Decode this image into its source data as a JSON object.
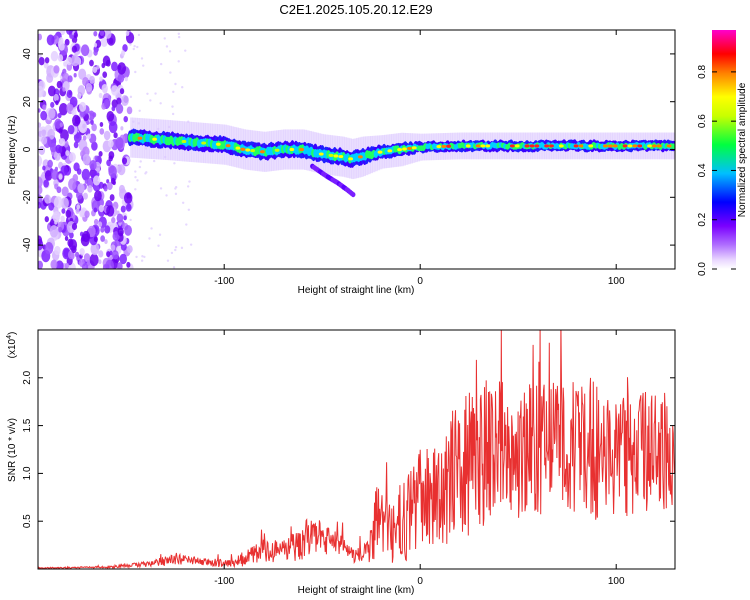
{
  "title": "C2E1.2025.105.20.12.E29",
  "chart_data": [
    {
      "type": "heatmap",
      "panel": "spectrogram",
      "xlabel": "Height of straight line (km)",
      "ylabel": "Frequency (Hz)",
      "xlim": [
        -195,
        130
      ],
      "ylim": [
        -50,
        50
      ],
      "xticks": [
        -100,
        0,
        100
      ],
      "xtick_labels": [
        "-100",
        "0",
        "100"
      ],
      "yticks": [
        -40,
        -20,
        0,
        20,
        40
      ],
      "ytick_labels": [
        "-40",
        "-20",
        "0",
        "20",
        "40"
      ],
      "colorbar": {
        "label": "Normalized spectral amplitude",
        "range": [
          0.0,
          0.97
        ],
        "ticks": [
          0.0,
          0.2,
          0.4,
          0.6,
          0.8
        ],
        "tick_labels": [
          "0.0",
          "0.2",
          "0.4",
          "0.6",
          "0.8"
        ],
        "colormap": [
          "#ffffff",
          "#c8a0ff",
          "#8800ff",
          "#0000ff",
          "#00bfff",
          "#00ff00",
          "#ffff00",
          "#ff8000",
          "#ff0000",
          "#ff00ff"
        ]
      },
      "noise_region_x": [
        -195,
        -148
      ],
      "main_band": {
        "x": [
          -148,
          -130,
          -115,
          -100,
          -90,
          -80,
          -70,
          -60,
          -50,
          -40,
          -35,
          -30,
          -20,
          -10,
          0,
          20,
          40,
          60,
          80,
          100,
          130
        ],
        "center_hz": [
          5,
          4,
          3,
          2,
          0,
          -1,
          0,
          0,
          -2,
          -3,
          -4,
          -3,
          -1,
          0,
          1,
          1.5,
          1.5,
          1.5,
          1.5,
          1.5,
          1.5
        ],
        "width_hz": [
          6,
          6,
          6,
          6,
          6,
          6,
          6,
          6,
          6,
          6,
          6,
          6,
          5,
          5,
          4,
          4,
          4,
          4,
          4,
          4,
          4
        ]
      },
      "secondary_branch": {
        "x": [
          -55,
          -48,
          -42,
          -37,
          -34
        ],
        "y_hz": [
          -7,
          -11,
          -14,
          -17,
          -19
        ]
      }
    },
    {
      "type": "line",
      "panel": "snr",
      "xlabel": "Height of straight line (km)",
      "ylabel": "SNR (10 * v/v)",
      "scale_label": "(x10",
      "scale_exponent": "4",
      "xlim": [
        -195,
        130
      ],
      "ylim": [
        0,
        2.5
      ],
      "xticks": [
        -100,
        0,
        100
      ],
      "xtick_labels": [
        "-100",
        "0",
        "100"
      ],
      "yticks": [
        0.5,
        1.0,
        1.5,
        2.0
      ],
      "ytick_labels": [
        "0.5",
        "1.0",
        "1.5",
        "2.0"
      ],
      "color": "#e83030",
      "envelope": {
        "x": [
          -195,
          -160,
          -140,
          -130,
          -125,
          -110,
          -100,
          -90,
          -80,
          -70,
          -60,
          -55,
          -50,
          -45,
          -40,
          -35,
          -30,
          -25,
          -22,
          -20,
          -15,
          -12,
          -10,
          -5,
          0,
          10,
          20,
          30,
          40,
          60,
          70,
          80,
          90,
          100,
          110,
          120,
          130
        ],
        "mean": [
          0.01,
          0.02,
          0.05,
          0.08,
          0.1,
          0.07,
          0.06,
          0.1,
          0.2,
          0.18,
          0.28,
          0.4,
          0.3,
          0.28,
          0.25,
          0.15,
          0.15,
          0.22,
          0.5,
          0.45,
          0.42,
          0.25,
          0.5,
          0.6,
          0.75,
          0.8,
          1.0,
          1.2,
          1.3,
          1.2,
          1.35,
          1.3,
          1.25,
          1.2,
          1.2,
          1.25,
          1.25
        ],
        "amplitude": [
          0.005,
          0.01,
          0.03,
          0.05,
          0.06,
          0.04,
          0.05,
          0.08,
          0.12,
          0.12,
          0.18,
          0.22,
          0.18,
          0.14,
          0.12,
          0.08,
          0.1,
          0.2,
          0.45,
          0.35,
          0.35,
          0.3,
          0.5,
          0.45,
          0.5,
          0.55,
          0.75,
          0.8,
          0.7,
          0.75,
          0.8,
          0.7,
          0.75,
          0.7,
          0.65,
          0.65,
          0.6
        ]
      }
    }
  ]
}
